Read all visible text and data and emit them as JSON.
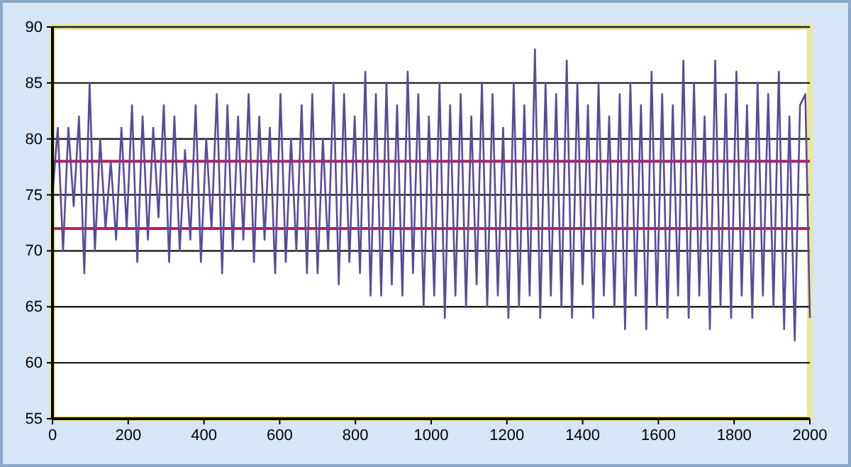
{
  "chart_data": {
    "type": "line",
    "x": [
      0,
      14,
      28,
      42,
      56,
      70,
      84,
      98,
      112,
      126,
      140,
      154,
      168,
      182,
      196,
      210,
      224,
      238,
      252,
      266,
      280,
      294,
      308,
      322,
      336,
      350,
      364,
      378,
      392,
      406,
      420,
      434,
      448,
      462,
      476,
      490,
      504,
      518,
      532,
      546,
      560,
      574,
      588,
      602,
      616,
      630,
      644,
      658,
      672,
      686,
      700,
      714,
      728,
      742,
      756,
      770,
      784,
      798,
      812,
      826,
      840,
      854,
      868,
      882,
      896,
      910,
      924,
      938,
      952,
      966,
      980,
      994,
      1008,
      1022,
      1036,
      1050,
      1064,
      1078,
      1092,
      1106,
      1120,
      1134,
      1148,
      1162,
      1176,
      1190,
      1204,
      1218,
      1232,
      1246,
      1260,
      1274,
      1288,
      1302,
      1316,
      1330,
      1344,
      1358,
      1372,
      1386,
      1400,
      1414,
      1428,
      1442,
      1456,
      1470,
      1484,
      1498,
      1512,
      1526,
      1540,
      1554,
      1568,
      1582,
      1596,
      1610,
      1624,
      1638,
      1652,
      1666,
      1680,
      1694,
      1708,
      1722,
      1736,
      1750,
      1764,
      1778,
      1792,
      1806,
      1820,
      1834,
      1848,
      1862,
      1876,
      1890,
      1904,
      1918,
      1932,
      1946,
      1960,
      1974,
      1988,
      2000
    ],
    "series": [
      {
        "color": "#5a4a9c",
        "values": [
          75,
          81,
          70,
          81,
          74,
          82,
          68,
          85,
          70,
          80,
          72,
          78,
          71,
          81,
          72,
          83,
          69,
          82,
          71,
          81,
          73,
          83,
          69,
          82,
          70,
          79,
          71,
          83,
          69,
          80,
          72,
          84,
          68,
          83,
          70,
          82,
          71,
          84,
          69,
          82,
          71,
          81,
          68,
          84,
          69,
          80,
          70,
          83,
          68,
          84,
          68,
          80,
          70,
          85,
          67,
          84,
          69,
          82,
          68,
          86,
          66,
          84,
          66,
          85,
          67,
          83,
          66,
          86,
          68,
          84,
          65,
          82,
          66,
          85,
          64,
          83,
          66,
          84,
          65,
          82,
          67,
          85,
          65,
          84,
          66,
          81,
          64,
          85,
          65,
          83,
          66,
          88,
          64,
          85,
          66,
          84,
          65,
          87,
          64,
          85,
          67,
          83,
          64,
          85,
          66,
          82,
          65,
          84,
          63,
          85,
          66,
          83,
          63,
          86,
          65,
          84,
          64,
          83,
          66,
          87,
          64,
          85,
          66,
          82,
          63,
          87,
          65,
          84,
          64,
          86,
          66,
          83,
          64,
          85,
          66,
          84,
          65,
          86,
          63,
          82,
          62,
          83,
          84,
          64
        ]
      }
    ],
    "xlim": [
      0,
      2000
    ],
    "xticks": [
      0,
      200,
      400,
      600,
      800,
      1000,
      1200,
      1400,
      1600,
      1800,
      2000
    ],
    "ylim": [
      55,
      90
    ],
    "yticks": [
      55,
      60,
      65,
      70,
      75,
      80,
      85,
      90
    ],
    "grid": "y",
    "marker": "none",
    "line_style": "solid",
    "ref_lines": [
      {
        "axis": "y",
        "value": 78,
        "color": "#c0185c"
      },
      {
        "axis": "y",
        "value": 72,
        "color": "#c0185c"
      }
    ]
  }
}
